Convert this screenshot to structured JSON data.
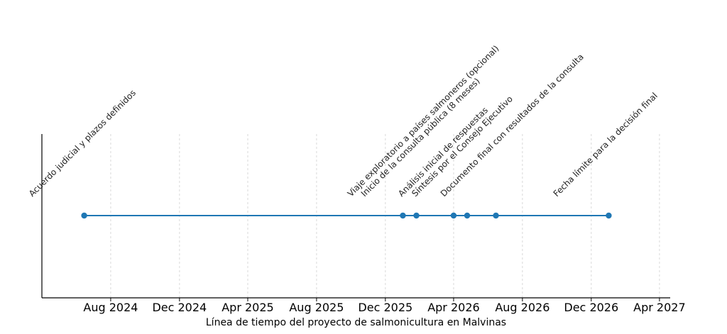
{
  "chart_data": {
    "type": "scatter",
    "title": "",
    "xlabel": "Línea de tiempo del proyecto de salmonicultura en Malvinas",
    "ylabel": "",
    "grid": {
      "x": true,
      "y": false
    },
    "xlim": [
      "2024-04-01",
      "2027-04-20"
    ],
    "x_ticks": [
      {
        "date": "2024-08-01",
        "label": "Aug 2024"
      },
      {
        "date": "2024-12-01",
        "label": "Dec 2024"
      },
      {
        "date": "2025-04-01",
        "label": "Apr 2025"
      },
      {
        "date": "2025-08-01",
        "label": "Aug 2025"
      },
      {
        "date": "2025-12-01",
        "label": "Dec 2025"
      },
      {
        "date": "2026-04-01",
        "label": "Apr 2026"
      },
      {
        "date": "2026-08-01",
        "label": "Aug 2026"
      },
      {
        "date": "2026-12-01",
        "label": "Dec 2026"
      },
      {
        "date": "2027-04-01",
        "label": "Apr 2027"
      }
    ],
    "series": [
      {
        "color": "#1f77b4",
        "points": [
          {
            "x": "2024-06-15",
            "label": "Acuerdo judicial y plazos definidos"
          },
          {
            "x": "2026-01-01",
            "label": "Viaje exploratorio a países salmoneros (opcional)"
          },
          {
            "x": "2026-01-25",
            "label": "Inicio de la consulta pública (8 meses)"
          },
          {
            "x": "2026-04-01",
            "label": "Análisis inicial de respuestas"
          },
          {
            "x": "2026-04-25",
            "label": "Síntesis por el Consejo Ejecutivo"
          },
          {
            "x": "2026-06-15",
            "label": "Documento final con resultados de la consulta"
          },
          {
            "x": "2027-01-01",
            "label": "Fecha límite para la decisión final"
          }
        ]
      }
    ]
  }
}
